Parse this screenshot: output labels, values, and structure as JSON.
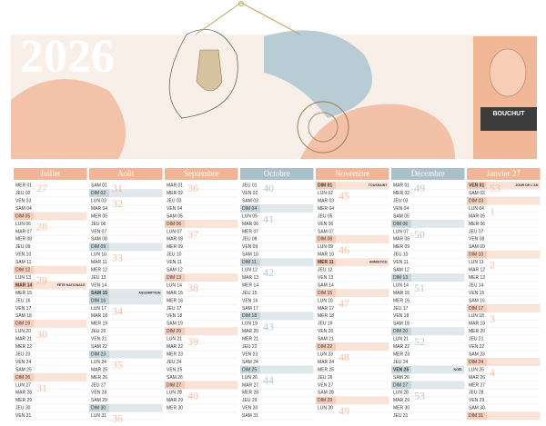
{
  "header": {
    "year": "2026",
    "brand": "BOUCHUT"
  },
  "months": [
    {
      "name": "Juillet",
      "color": "#f0b496",
      "shade": "#f6cdb8",
      "days": [
        "MER 01",
        "JEU 02",
        "VEN 03",
        "SAM 04",
        "DIM 05",
        "LUN 06",
        "MAR 07",
        "MER 08",
        "JEU 09",
        "VEN 10",
        "SAM 11",
        "DIM 12",
        "LUN 13",
        "MAR 14",
        "MER 15",
        "JEU 16",
        "VEN 17",
        "SAM 18",
        "DIM 19",
        "LUN 20",
        "MAR 21",
        "MER 22",
        "JEU 23",
        "VEN 24",
        "SAM 25",
        "DIM 26",
        "LUN 27",
        "MAR 28",
        "MER 29",
        "JEU 30",
        "VEN 31"
      ],
      "shaded": [
        5,
        12,
        14,
        19,
        26
      ],
      "weeks": [
        {
          "day": 1,
          "week": 27
        },
        {
          "day": 6,
          "week": 28
        },
        {
          "day": 13,
          "week": 29
        },
        {
          "day": 20,
          "week": 30
        },
        {
          "day": 27,
          "week": 31
        }
      ],
      "holidays": [
        {
          "day": 14,
          "name": "FÊTE NATIONALE"
        }
      ]
    },
    {
      "name": "Août",
      "color": "#f0b496",
      "shade": "#c7d6dc",
      "days": [
        "SAM 01",
        "DIM 02",
        "LUN 03",
        "MAR 04",
        "MER 05",
        "JEU 06",
        "VEN 07",
        "SAM 08",
        "DIM 09",
        "LUN 10",
        "MAR 11",
        "MER 12",
        "JEU 13",
        "VEN 14",
        "SAM 15",
        "DIM 16",
        "LUN 17",
        "MAR 18",
        "MER 19",
        "JEU 20",
        "VEN 21",
        "SAM 22",
        "DIM 23",
        "LUN 24",
        "MAR 25",
        "MER 26",
        "JEU 27",
        "VEN 28",
        "SAM 29",
        "DIM 30",
        "LUN 31"
      ],
      "shaded": [
        2,
        9,
        15,
        16,
        23,
        30
      ],
      "weeks": [
        {
          "day": 1,
          "week": 31
        },
        {
          "day": 3,
          "week": 32
        },
        {
          "day": 10,
          "week": 33
        },
        {
          "day": 17,
          "week": 34
        },
        {
          "day": 24,
          "week": 35
        },
        {
          "day": 31,
          "week": 36
        }
      ],
      "holidays": [
        {
          "day": 15,
          "name": "ASSOMPTION"
        }
      ]
    },
    {
      "name": "Septembre",
      "color": "#f0b496",
      "shade": "#f6cdb8",
      "days": [
        "MAR 01",
        "MER 02",
        "JEU 03",
        "VEN 04",
        "SAM 05",
        "DIM 06",
        "LUN 07",
        "MAR 08",
        "MER 09",
        "JEU 10",
        "VEN 11",
        "SAM 12",
        "DIM 13",
        "LUN 14",
        "MAR 15",
        "MER 16",
        "JEU 17",
        "VEN 18",
        "SAM 19",
        "DIM 20",
        "LUN 21",
        "MAR 22",
        "MER 23",
        "JEU 24",
        "VEN 25",
        "SAM 26",
        "DIM 27",
        "LUN 28",
        "MAR 29",
        "MER 30"
      ],
      "shaded": [
        6,
        13,
        20,
        27
      ],
      "weeks": [
        {
          "day": 1,
          "week": 36
        },
        {
          "day": 7,
          "week": 37
        },
        {
          "day": 14,
          "week": 38
        },
        {
          "day": 21,
          "week": 39
        },
        {
          "day": 28,
          "week": 40
        }
      ],
      "holidays": []
    },
    {
      "name": "Octobre",
      "color": "#a9c0c9",
      "shade": "#c7d6dc",
      "days": [
        "JEU 01",
        "VEN 02",
        "SAM 03",
        "DIM 04",
        "LUN 05",
        "MAR 06",
        "MER 07",
        "JEU 08",
        "VEN 09",
        "SAM 10",
        "DIM 11",
        "LUN 12",
        "MAR 13",
        "MER 14",
        "JEU 15",
        "VEN 16",
        "SAM 17",
        "DIM 18",
        "LUN 19",
        "MAR 20",
        "MER 21",
        "JEU 22",
        "VEN 23",
        "SAM 24",
        "DIM 25",
        "LUN 26",
        "MAR 27",
        "MER 28",
        "JEU 29",
        "VEN 30",
        "SAM 31"
      ],
      "shaded": [
        4,
        11,
        18,
        25
      ],
      "weeks": [
        {
          "day": 1,
          "week": 40
        },
        {
          "day": 5,
          "week": 41
        },
        {
          "day": 12,
          "week": 42
        },
        {
          "day": 19,
          "week": 43
        },
        {
          "day": 26,
          "week": 44
        }
      ],
      "holidays": []
    },
    {
      "name": "Novembre",
      "color": "#f0b496",
      "shade": "#f6cdb8",
      "days": [
        "DIM 01",
        "LUN 02",
        "MAR 03",
        "MER 04",
        "JEU 05",
        "VEN 06",
        "SAM 07",
        "DIM 08",
        "LUN 09",
        "MAR 10",
        "MER 11",
        "JEU 12",
        "VEN 13",
        "SAM 14",
        "DIM 15",
        "LUN 16",
        "MAR 17",
        "MER 18",
        "JEU 19",
        "VEN 20",
        "SAM 21",
        "DIM 22",
        "LUN 23",
        "MAR 24",
        "MER 25",
        "JEU 26",
        "VEN 27",
        "SAM 28",
        "DIM 29",
        "LUN 30"
      ],
      "shaded": [
        1,
        8,
        11,
        15,
        22,
        29
      ],
      "weeks": [
        {
          "day": 2,
          "week": 45
        },
        {
          "day": 9,
          "week": 46
        },
        {
          "day": 16,
          "week": 47
        },
        {
          "day": 23,
          "week": 48
        },
        {
          "day": 30,
          "week": 49
        }
      ],
      "holidays": [
        {
          "day": 1,
          "name": "TOUSSAINT"
        },
        {
          "day": 11,
          "name": "ARMISTICE"
        }
      ]
    },
    {
      "name": "Décembre",
      "color": "#a9c0c9",
      "shade": "#c7d6dc",
      "days": [
        "MAR 01",
        "MER 02",
        "JEU 03",
        "VEN 04",
        "SAM 05",
        "DIM 06",
        "LUN 07",
        "MAR 08",
        "MER 09",
        "JEU 10",
        "VEN 11",
        "SAM 12",
        "DIM 13",
        "LUN 14",
        "MAR 15",
        "MER 16",
        "JEU 17",
        "VEN 18",
        "SAM 19",
        "DIM 20",
        "LUN 21",
        "MAR 22",
        "MER 23",
        "JEU 24",
        "VEN 25",
        "SAM 26",
        "DIM 27",
        "LUN 28",
        "MAR 29",
        "MER 30",
        "JEU 31"
      ],
      "shaded": [
        6,
        13,
        20,
        25,
        27
      ],
      "weeks": [
        {
          "day": 1,
          "week": 49
        },
        {
          "day": 7,
          "week": 50
        },
        {
          "day": 14,
          "week": 51
        },
        {
          "day": 21,
          "week": 52
        },
        {
          "day": 28,
          "week": 53
        }
      ],
      "holidays": [
        {
          "day": 25,
          "name": "NOËL"
        }
      ]
    },
    {
      "name": "Janvier 27",
      "color": "#f0b496",
      "shade": "#f6cdb8",
      "days": [
        "VEN 01",
        "SAM 02",
        "DIM 03",
        "LUN 04",
        "MAR 05",
        "MER 06",
        "JEU 07",
        "VEN 08",
        "SAM 09",
        "DIM 10",
        "LUN 11",
        "MAR 12",
        "MER 13",
        "JEU 14",
        "VEN 15",
        "SAM 16",
        "DIM 17",
        "LUN 18",
        "MAR 19",
        "MER 20",
        "JEU 21",
        "VEN 22",
        "SAM 23",
        "DIM 24",
        "LUN 25",
        "MAR 26",
        "MER 27",
        "JEU 28",
        "VEN 29",
        "SAM 30",
        "DIM 31"
      ],
      "shaded": [
        1,
        3,
        10,
        17,
        24,
        31
      ],
      "weeks": [
        {
          "day": 1,
          "week": 53
        },
        {
          "day": 4,
          "week": 1
        },
        {
          "day": 11,
          "week": 2
        },
        {
          "day": 18,
          "week": 3
        },
        {
          "day": 25,
          "week": 4
        }
      ],
      "holidays": [
        {
          "day": 1,
          "name": "JOUR DE L'AN"
        }
      ]
    }
  ]
}
